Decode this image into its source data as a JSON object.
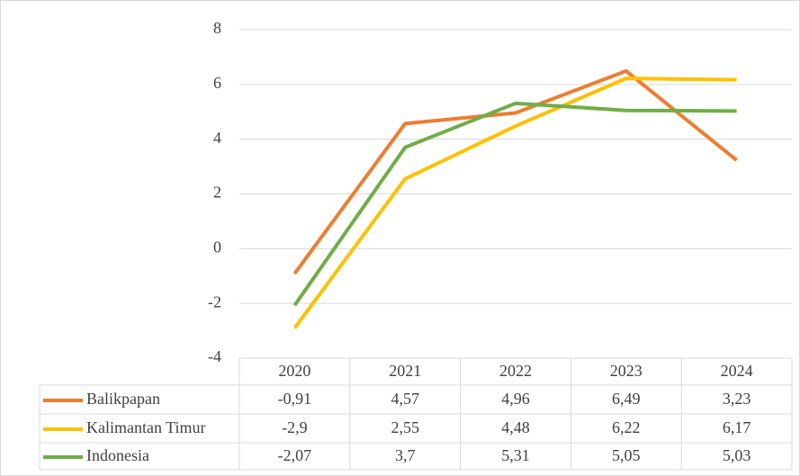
{
  "chart_data": {
    "type": "line",
    "categories": [
      "2020",
      "2021",
      "2022",
      "2023",
      "2024"
    ],
    "series": [
      {
        "name": "Balikpapan",
        "color": "#ed7d31",
        "values": [
          -0.91,
          4.57,
          4.96,
          6.49,
          3.23
        ],
        "value_labels": [
          "-0,91",
          "4,57",
          "4,96",
          "6,49",
          "3,23"
        ]
      },
      {
        "name": "Kalimantan Timur",
        "color": "#ffc000",
        "values": [
          -2.9,
          2.55,
          4.48,
          6.22,
          6.17
        ],
        "value_labels": [
          "-2,9",
          "2,55",
          "4,48",
          "6,22",
          "6,17"
        ]
      },
      {
        "name": "Indonesia",
        "color": "#70ad47",
        "values": [
          -2.07,
          3.7,
          5.31,
          5.05,
          5.03
        ],
        "value_labels": [
          "-2,07",
          "3,7",
          "5,31",
          "5,05",
          "5,03"
        ]
      }
    ],
    "ylim": [
      -4,
      8
    ],
    "yticks": [
      -4,
      -2,
      0,
      2,
      4,
      6,
      8
    ],
    "grid": true
  }
}
